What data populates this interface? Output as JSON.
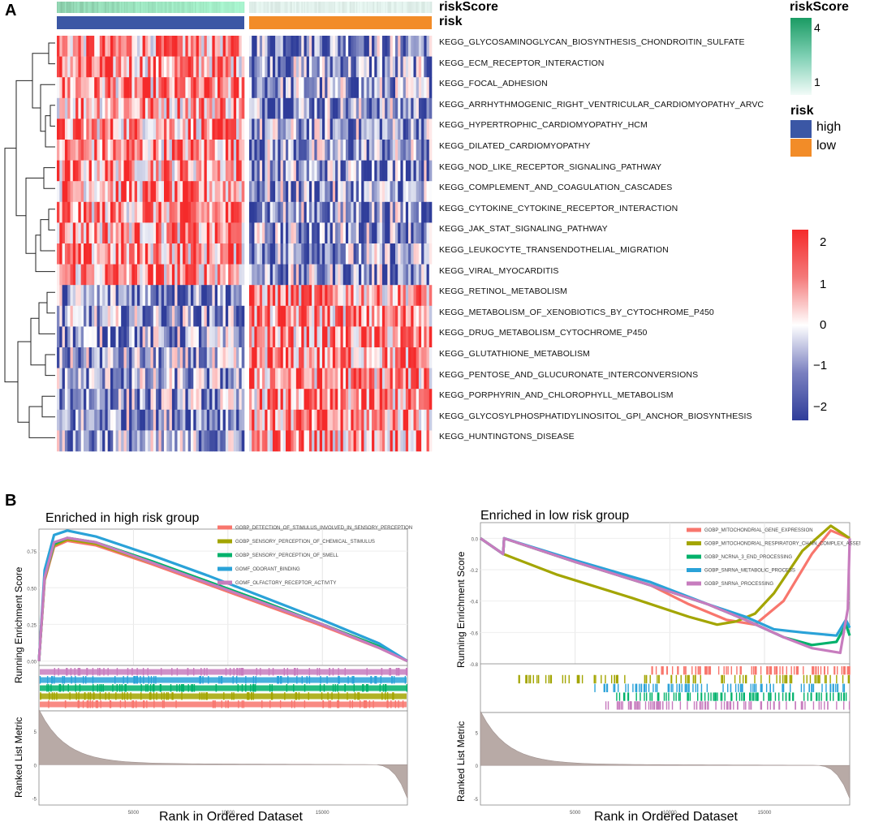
{
  "panel_a": {
    "letter": "A"
  },
  "panel_b": {
    "letter": "B"
  },
  "chart_data": [
    {
      "type": "heatmap",
      "title": "",
      "row_annotations": [
        "riskScore",
        "risk"
      ],
      "rows": [
        "KEGG_GLYCOSAMINOGLYCAN_BIOSYNTHESIS_CHONDROITIN_SULFATE",
        "KEGG_ECM_RECEPTOR_INTERACTION",
        "KEGG_FOCAL_ADHESION",
        "KEGG_ARRHYTHMOGENIC_RIGHT_VENTRICULAR_CARDIOMYOPATHY_ARVC",
        "KEGG_HYPERTROPHIC_CARDIOMYOPATHY_HCM",
        "KEGG_DILATED_CARDIOMYOPATHY",
        "KEGG_NOD_LIKE_RECEPTOR_SIGNALING_PATHWAY",
        "KEGG_COMPLEMENT_AND_COAGULATION_CASCADES",
        "KEGG_CYTOKINE_CYTOKINE_RECEPTOR_INTERACTION",
        "KEGG_JAK_STAT_SIGNALING_PATHWAY",
        "KEGG_LEUKOCYTE_TRANSENDOTHELIAL_MIGRATION",
        "KEGG_VIRAL_MYOCARDITIS",
        "KEGG_RETINOL_METABOLISM",
        "KEGG_METABOLISM_OF_XENOBIOTICS_BY_CYTOCHROME_P450",
        "KEGG_DRUG_METABOLISM_CYTOCHROME_P450",
        "KEGG_GLUTATHIONE_METABOLISM",
        "KEGG_PENTOSE_AND_GLUCURONATE_INTERCONVERSIONS",
        "KEGG_PORPHYRIN_AND_CHLOROPHYLL_METABOLISM",
        "KEGG_GLYCOSYLPHOSPHATIDYLINOSITOL_GPI_ANCHOR_BIOSYNTHESIS",
        "KEGG_HUNTINGTONS_DISEASE"
      ],
      "row_trend_high_risk": [
        1,
        1,
        1,
        1,
        1,
        1,
        1,
        1,
        1,
        1,
        1,
        1,
        -1,
        -1,
        -1,
        -1,
        -1,
        -1,
        -1,
        -1
      ],
      "column_groups": [
        {
          "name": "high",
          "color": "#3b57a5"
        },
        {
          "name": "low",
          "color": "#f28c28"
        }
      ],
      "legend_riskScore": {
        "title": "riskScore",
        "ticks": [
          "4",
          "1"
        ],
        "colors": [
          "#1a9b63",
          "#f2fbf8"
        ]
      },
      "legend_risk": {
        "title": "risk",
        "entries": [
          "high",
          "low"
        ]
      },
      "color_scale": {
        "ticks": [
          "2",
          "1",
          "0",
          "−1",
          "−2"
        ],
        "values": [
          2,
          1,
          0,
          -1,
          -2
        ],
        "low_color": "#2f3d9a",
        "mid_color": "#ffffff",
        "high_color": "#f52a2a"
      }
    },
    {
      "type": "line",
      "title": "Enriched in high risk group",
      "ylabel": "Running Enrichment Score",
      "xlabel": "Rank in Ordered Dataset",
      "lower_ylabel": "Ranked List Metric",
      "y_ticks": [
        "0.75",
        "0.50",
        "0.25",
        "0.00"
      ],
      "x_ticks": [
        "5000",
        "10000",
        "15000"
      ],
      "lower_y_ticks": [
        "5",
        "0",
        "-5"
      ],
      "xlim": [
        0,
        19500
      ],
      "ylim": [
        -0.03,
        0.9
      ],
      "series": [
        {
          "name": "GOBP_DETECTION_OF_STIMULUS_INVOLVED_IN_SENSORY_PERCEPTION",
          "color": "#f8766d",
          "x": [
            0,
            300,
            800,
            1500,
            3000,
            6000,
            9000,
            12000,
            15000,
            18000,
            19500
          ],
          "values": [
            0,
            0.55,
            0.78,
            0.82,
            0.79,
            0.66,
            0.52,
            0.38,
            0.24,
            0.09,
            0.0
          ]
        },
        {
          "name": "GOBP_SENSORY_PERCEPTION_OF_CHEMICAL_STIMULUS",
          "color": "#a3a500",
          "x": [
            0,
            300,
            800,
            1500,
            3000,
            6000,
            9000,
            12000,
            15000,
            18000,
            19500
          ],
          "values": [
            0,
            0.56,
            0.79,
            0.83,
            0.8,
            0.67,
            0.53,
            0.39,
            0.25,
            0.1,
            0.0
          ]
        },
        {
          "name": "GOBP_SENSORY_PERCEPTION_OF_SMELL",
          "color": "#00b16b",
          "x": [
            0,
            300,
            800,
            1500,
            3000,
            6000,
            9000,
            12000,
            15000,
            18000,
            19500
          ],
          "values": [
            0,
            0.57,
            0.8,
            0.84,
            0.81,
            0.68,
            0.54,
            0.4,
            0.25,
            0.1,
            0.0
          ]
        },
        {
          "name": "GOMF_ODORANT_BINDING",
          "color": "#2aa2d8",
          "x": [
            0,
            300,
            800,
            1500,
            3000,
            6000,
            9000,
            12000,
            15000,
            18000,
            19500
          ],
          "values": [
            0,
            0.62,
            0.86,
            0.89,
            0.85,
            0.72,
            0.58,
            0.43,
            0.28,
            0.12,
            0.0
          ]
        },
        {
          "name": "GOMF_OLFACTORY_RECEPTOR_ACTIVITY",
          "color": "#c77cbe",
          "x": [
            0,
            300,
            800,
            1500,
            3000,
            6000,
            9000,
            12000,
            15000,
            18000,
            19500
          ],
          "values": [
            0,
            0.57,
            0.81,
            0.84,
            0.81,
            0.67,
            0.53,
            0.39,
            0.25,
            0.09,
            0.0
          ]
        }
      ]
    },
    {
      "type": "line",
      "title": "Enriched in low risk group",
      "ylabel": "Running Enrichment Score",
      "xlabel": "Rank in Ordered Dataset",
      "lower_ylabel": "Ranked List Metric",
      "y_ticks": [
        "0.0",
        "-0.2",
        "-0.4",
        "-0.6",
        "-0.8"
      ],
      "x_ticks": [
        "5000",
        "10000",
        "15000"
      ],
      "lower_y_ticks": [
        "5",
        "0",
        "-5"
      ],
      "xlim": [
        0,
        19500
      ],
      "ylim": [
        -0.8,
        0.1
      ],
      "series": [
        {
          "name": "GOBP_MITOCHONDRIAL_GENE_EXPRESSION",
          "color": "#f8766d",
          "x": [
            0,
            1200,
            1250,
            5000,
            9000,
            11000,
            13000,
            14500,
            16000,
            17500,
            18500,
            19500
          ],
          "values": [
            0,
            -0.1,
            0.0,
            -0.15,
            -0.3,
            -0.42,
            -0.52,
            -0.55,
            -0.4,
            -0.1,
            0.05,
            0.0
          ]
        },
        {
          "name": "GOBP_MITOCHONDRIAL_RESPIRATORY_CHAIN_COMPLEX_ASSEMBLY",
          "color": "#a3a500",
          "x": [
            0,
            1200,
            4000,
            8000,
            11000,
            12500,
            13500,
            14500,
            15500,
            17000,
            18500,
            19500
          ],
          "values": [
            0,
            -0.1,
            -0.23,
            -0.38,
            -0.5,
            -0.55,
            -0.53,
            -0.48,
            -0.35,
            -0.08,
            0.08,
            0.0
          ]
        },
        {
          "name": "GOBP_NCRNA_3_END_PROCESSING",
          "color": "#00b16b",
          "x": [
            0,
            1200,
            1250,
            5000,
            9000,
            12000,
            14000,
            16000,
            17500,
            18800,
            19300,
            19500
          ],
          "values": [
            0,
            -0.1,
            0.0,
            -0.15,
            -0.3,
            -0.42,
            -0.52,
            -0.63,
            -0.68,
            -0.66,
            -0.55,
            -0.62
          ]
        },
        {
          "name": "GOBP_SNRNA_METABOLIC_PROCESS",
          "color": "#2aa2d8",
          "x": [
            0,
            1200,
            1250,
            5000,
            9000,
            12000,
            14000,
            15500,
            17000,
            18800,
            19300,
            19500
          ],
          "values": [
            0,
            -0.1,
            0.0,
            -0.14,
            -0.28,
            -0.42,
            -0.5,
            -0.58,
            -0.6,
            -0.62,
            -0.52,
            -0.57
          ]
        },
        {
          "name": "GOBP_SNRNA_PROCESSING",
          "color": "#c77cbe",
          "x": [
            0,
            1200,
            1250,
            5000,
            9000,
            12000,
            14000,
            16000,
            17500,
            19000,
            19400,
            19500
          ],
          "values": [
            0,
            -0.1,
            0.0,
            -0.15,
            -0.3,
            -0.42,
            -0.52,
            -0.63,
            -0.7,
            -0.73,
            -0.45,
            0.0
          ]
        }
      ]
    }
  ]
}
